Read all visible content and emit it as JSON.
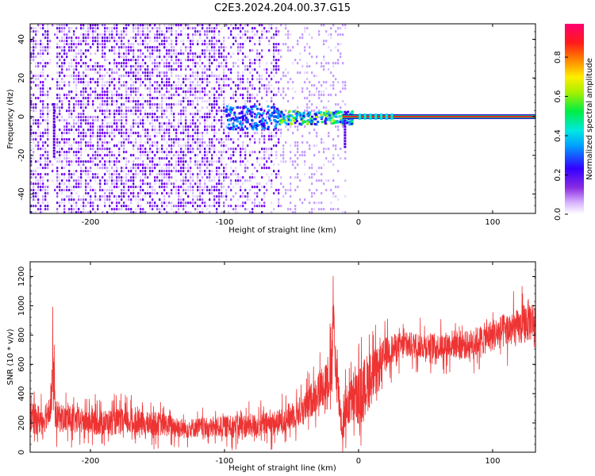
{
  "chart_data": [
    {
      "type": "heatmap",
      "title": "C2E3.2024.204.00.37.G15",
      "xlabel": "Height of straight line (km)",
      "ylabel": "Frequency (Hz)",
      "xlim": [
        -245,
        132
      ],
      "ylim": [
        -50,
        48
      ],
      "xticks": [
        -200,
        -100,
        0,
        100
      ],
      "yticks": [
        -40,
        -20,
        0,
        20,
        40
      ],
      "colorbar": {
        "label": "Normalized spectral amplitude",
        "range": [
          0,
          0.97
        ],
        "ticks": [
          "0.0",
          "0.2",
          "0.4",
          "0.6",
          "0.8"
        ],
        "colormap": "hsv-rainbow (white → purple → blue → cyan → green → yellow → red → magenta)"
      },
      "features": {
        "diffuse_purple_noise_x_range": [
          -245,
          -10
        ],
        "bright_carrier_line_freq_hz": 0,
        "carrier_line_x_range": [
          -100,
          132
        ],
        "empty_region_x_range": [
          -10,
          132
        ],
        "peak_amplitude": 0.97
      },
      "grid": false
    },
    {
      "type": "line",
      "xlabel": "Height of straight line (km)",
      "ylabel": "SNR (10 * v/v)",
      "xlim": [
        -245,
        132
      ],
      "ylim": [
        0,
        1300
      ],
      "xticks": [
        -200,
        -100,
        0,
        100
      ],
      "yticks": [
        0,
        200,
        400,
        600,
        800,
        1000,
        1200
      ],
      "line_color": "#ee3333",
      "grid": false,
      "series": [
        {
          "x": [
            -245,
            -235,
            -230,
            -228,
            -226,
            -220,
            -210,
            -200,
            -190,
            -180,
            -170,
            -160,
            -150,
            -140,
            -130,
            -120,
            -110,
            -100,
            -90,
            -80,
            -70,
            -60,
            -50,
            -40,
            -35,
            -30,
            -25,
            -20,
            -19,
            -18,
            -15,
            -12,
            -10,
            -5,
            0,
            5,
            10,
            15,
            20,
            30,
            40,
            50,
            60,
            70,
            80,
            90,
            100,
            110,
            120,
            126,
            132
          ],
          "values": [
            230,
            220,
            320,
            520,
            250,
            230,
            210,
            210,
            200,
            210,
            205,
            190,
            195,
            180,
            160,
            170,
            165,
            175,
            180,
            180,
            190,
            200,
            250,
            300,
            360,
            420,
            480,
            550,
            1000,
            700,
            400,
            150,
            300,
            350,
            380,
            450,
            520,
            560,
            680,
            720,
            730,
            730,
            720,
            740,
            730,
            760,
            800,
            830,
            850,
            900,
            900
          ],
          "noise_amplitude": [
            140,
            140,
            140,
            350,
            140,
            130,
            120,
            120,
            120,
            120,
            120,
            110,
            110,
            100,
            90,
            90,
            90,
            100,
            110,
            110,
            110,
            120,
            130,
            140,
            160,
            180,
            200,
            250,
            300,
            250,
            220,
            150,
            200,
            220,
            250,
            280,
            250,
            200,
            150,
            130,
            120,
            120,
            120,
            130,
            130,
            140,
            150,
            160,
            170,
            200,
            180
          ]
        }
      ]
    }
  ]
}
